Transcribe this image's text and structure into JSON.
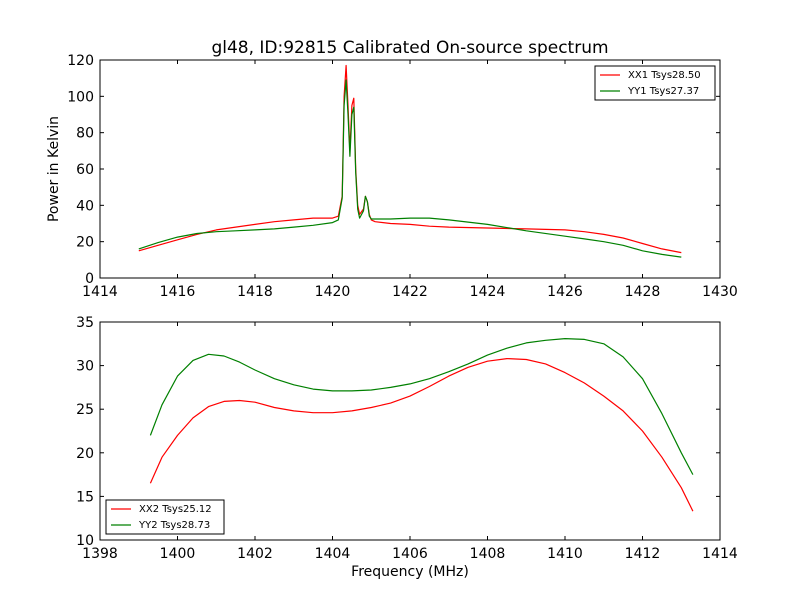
{
  "chart_data": [
    {
      "type": "line",
      "title": "gl48, ID:92815 Calibrated On-source spectrum",
      "xlabel": "",
      "ylabel": "Power in Kelvin",
      "xlim": [
        1414,
        1430
      ],
      "ylim": [
        0,
        120
      ],
      "xticks": [
        1414,
        1416,
        1418,
        1420,
        1422,
        1424,
        1426,
        1428,
        1430
      ],
      "yticks": [
        0,
        20,
        40,
        60,
        80,
        100,
        120
      ],
      "legend_position": "top-right",
      "series": [
        {
          "name": "XX1 Tsys28.50",
          "color": "#ff0000",
          "x": [
            1415.0,
            1415.5,
            1416.0,
            1416.5,
            1417.0,
            1417.5,
            1418.0,
            1418.5,
            1419.0,
            1419.5,
            1420.0,
            1420.15,
            1420.25,
            1420.3,
            1420.35,
            1420.4,
            1420.45,
            1420.5,
            1420.55,
            1420.6,
            1420.65,
            1420.7,
            1420.8,
            1420.85,
            1420.9,
            1420.95,
            1421.0,
            1421.1,
            1421.5,
            1422.0,
            1422.5,
            1423.0,
            1424.0,
            1425.0,
            1426.0,
            1426.5,
            1427.0,
            1427.5,
            1428.0,
            1428.5,
            1429.0
          ],
          "y": [
            15,
            18,
            21,
            24,
            26.5,
            28,
            29.5,
            31,
            32,
            33,
            33,
            34,
            45,
            100,
            117,
            95,
            70,
            95,
            99,
            60,
            40,
            35,
            38,
            45,
            42,
            35,
            32,
            31,
            30,
            29.5,
            28.5,
            28,
            27.5,
            27,
            26.5,
            25.5,
            24,
            22,
            19,
            16,
            14
          ]
        },
        {
          "name": "YY1 Tsys27.37",
          "color": "#008000",
          "x": [
            1415.0,
            1415.5,
            1416.0,
            1416.5,
            1417.0,
            1417.5,
            1418.0,
            1418.5,
            1419.0,
            1419.5,
            1420.0,
            1420.15,
            1420.25,
            1420.3,
            1420.35,
            1420.4,
            1420.45,
            1420.5,
            1420.55,
            1420.6,
            1420.65,
            1420.7,
            1420.8,
            1420.85,
            1420.9,
            1420.95,
            1421.0,
            1421.1,
            1421.5,
            1422.0,
            1422.5,
            1423.0,
            1424.0,
            1425.0,
            1426.0,
            1426.5,
            1427.0,
            1427.5,
            1428.0,
            1428.5,
            1429.0
          ],
          "y": [
            16,
            19.5,
            22.5,
            24.5,
            25.5,
            26,
            26.5,
            27,
            28,
            29,
            30.5,
            32,
            44,
            95,
            109,
            90,
            67,
            90,
            94,
            58,
            38,
            33,
            37,
            45,
            42,
            34,
            32.5,
            32.5,
            32.5,
            33,
            33,
            32,
            29.5,
            26,
            23,
            21.5,
            20,
            18,
            15,
            13,
            11.5
          ]
        }
      ]
    },
    {
      "type": "line",
      "title": "",
      "xlabel": "Frequency (MHz)",
      "ylabel": "",
      "xlim": [
        1398,
        1414
      ],
      "ylim": [
        10,
        35
      ],
      "xticks": [
        1398,
        1400,
        1402,
        1404,
        1406,
        1408,
        1410,
        1412,
        1414
      ],
      "yticks": [
        10,
        15,
        20,
        25,
        30,
        35
      ],
      "legend_position": "bottom-left",
      "series": [
        {
          "name": "XX2 Tsys25.12",
          "color": "#ff0000",
          "x": [
            1399.3,
            1399.6,
            1400.0,
            1400.4,
            1400.8,
            1401.2,
            1401.6,
            1402.0,
            1402.5,
            1403.0,
            1403.5,
            1404.0,
            1404.5,
            1405.0,
            1405.5,
            1406.0,
            1406.5,
            1407.0,
            1407.5,
            1408.0,
            1408.5,
            1409.0,
            1409.5,
            1410.0,
            1410.5,
            1411.0,
            1411.5,
            1412.0,
            1412.5,
            1413.0,
            1413.3
          ],
          "y": [
            16.5,
            19.5,
            22,
            24,
            25.3,
            25.9,
            26,
            25.8,
            25.2,
            24.8,
            24.6,
            24.6,
            24.8,
            25.2,
            25.7,
            26.5,
            27.6,
            28.8,
            29.8,
            30.5,
            30.8,
            30.7,
            30.2,
            29.2,
            28,
            26.5,
            24.8,
            22.5,
            19.5,
            16,
            13.3
          ]
        },
        {
          "name": "YY2 Tsys28.73",
          "color": "#008000",
          "x": [
            1399.3,
            1399.6,
            1400.0,
            1400.4,
            1400.8,
            1401.2,
            1401.6,
            1402.0,
            1402.5,
            1403.0,
            1403.5,
            1404.0,
            1404.5,
            1405.0,
            1405.5,
            1406.0,
            1406.5,
            1407.0,
            1407.5,
            1408.0,
            1408.5,
            1409.0,
            1409.5,
            1410.0,
            1410.5,
            1411.0,
            1411.5,
            1412.0,
            1412.5,
            1413.0,
            1413.3
          ],
          "y": [
            22,
            25.5,
            28.8,
            30.6,
            31.3,
            31.1,
            30.4,
            29.5,
            28.5,
            27.8,
            27.3,
            27.1,
            27.1,
            27.2,
            27.5,
            27.9,
            28.5,
            29.3,
            30.2,
            31.2,
            32,
            32.6,
            32.9,
            33.1,
            33,
            32.5,
            31,
            28.5,
            24.5,
            20,
            17.5
          ]
        }
      ]
    }
  ]
}
